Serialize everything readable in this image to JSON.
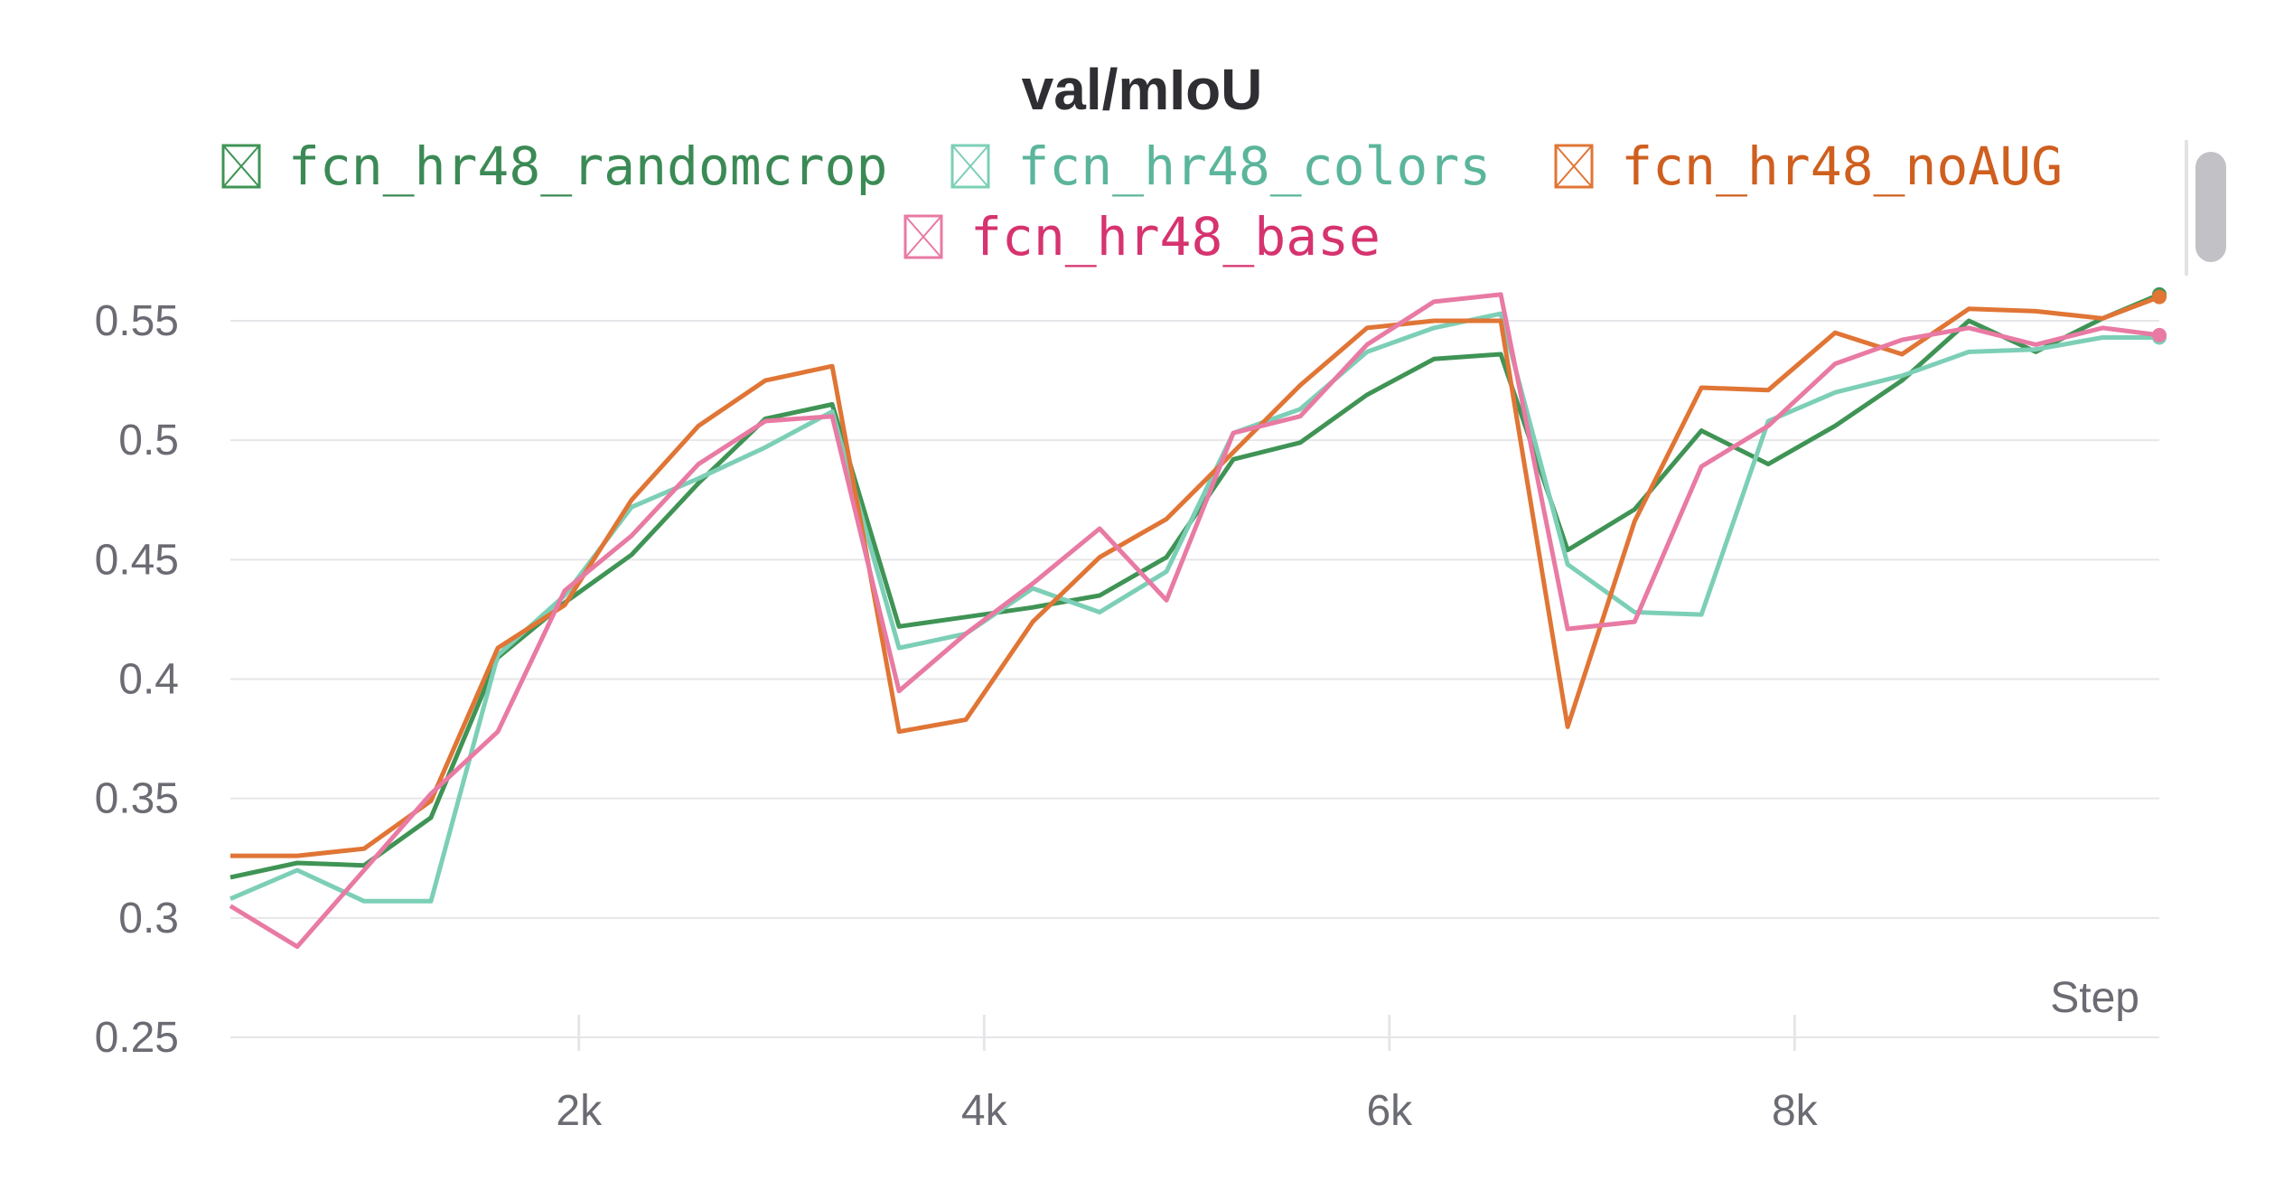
{
  "chart_data": {
    "type": "line",
    "title": "val/mIoU",
    "xlabel": "Step",
    "ylabel": "",
    "xlim": [
      280,
      9800
    ],
    "ylim": [
      0.25,
      0.56
    ],
    "x_ticks": [
      2000,
      4000,
      6000,
      8000
    ],
    "x_tick_labels": [
      "2k",
      "4k",
      "6k",
      "8k"
    ],
    "y_ticks": [
      0.25,
      0.3,
      0.35,
      0.4,
      0.45,
      0.5,
      0.55
    ],
    "y_tick_labels": [
      "0.25",
      "0.3",
      "0.35",
      "0.4",
      "0.45",
      "0.5",
      "0.55"
    ],
    "grid": true,
    "legend_position": "top-center",
    "x": [
      280,
      610,
      940,
      1270,
      1600,
      1930,
      2260,
      2590,
      2920,
      3250,
      3580,
      3910,
      4240,
      4570,
      4900,
      5230,
      5560,
      5890,
      6220,
      6550,
      6880,
      7210,
      7540,
      7870,
      8200,
      8530,
      8860,
      9190,
      9520,
      9800
    ],
    "series": [
      {
        "name": "fcn_hr48_randomcrop",
        "color": "#3f9455",
        "values": [
          0.317,
          0.323,
          0.322,
          0.342,
          0.409,
          0.432,
          0.452,
          0.482,
          0.509,
          0.515,
          0.422,
          0.426,
          0.43,
          0.435,
          0.451,
          0.492,
          0.499,
          0.519,
          0.534,
          0.536,
          0.454,
          0.471,
          0.504,
          0.49,
          0.506,
          0.525,
          0.55,
          0.537,
          0.551,
          0.561
        ]
      },
      {
        "name": "fcn_hr48_colors",
        "color": "#7ccfb6",
        "values": [
          0.308,
          0.32,
          0.307,
          0.307,
          0.41,
          0.435,
          0.472,
          0.484,
          0.497,
          0.512,
          0.413,
          0.419,
          0.438,
          0.428,
          0.445,
          0.503,
          0.513,
          0.537,
          0.547,
          0.553,
          0.448,
          0.428,
          0.427,
          0.508,
          0.52,
          0.527,
          0.537,
          0.538,
          0.543,
          0.543
        ]
      },
      {
        "name": "fcn_hr48_noAUG",
        "color": "#e07535",
        "values": [
          0.326,
          0.326,
          0.329,
          0.349,
          0.413,
          0.431,
          0.475,
          0.506,
          0.525,
          0.531,
          0.378,
          0.383,
          0.424,
          0.451,
          0.467,
          0.495,
          0.523,
          0.547,
          0.55,
          0.55,
          0.38,
          0.466,
          0.522,
          0.521,
          0.545,
          0.536,
          0.555,
          0.554,
          0.551,
          0.56
        ]
      },
      {
        "name": "fcn_hr48_base",
        "color": "#e87aa3",
        "values": [
          0.305,
          0.288,
          0.32,
          0.352,
          0.378,
          0.437,
          0.46,
          0.49,
          0.508,
          0.51,
          0.395,
          0.419,
          0.44,
          0.463,
          0.433,
          0.503,
          0.51,
          0.54,
          0.558,
          0.561,
          0.421,
          0.424,
          0.489,
          0.506,
          0.532,
          0.542,
          0.547,
          0.54,
          0.547,
          0.544
        ]
      }
    ]
  },
  "legend": {
    "items": [
      {
        "label": "fcn_hr48_randomcrop",
        "text_color": "#3b8a55",
        "icon": "checkbox-x-icon"
      },
      {
        "label": "fcn_hr48_colors",
        "text_color": "#5bb59b",
        "icon": "checkbox-x-icon"
      },
      {
        "label": "fcn_hr48_noAUG",
        "text_color": "#cf5f1f",
        "icon": "checkbox-x-icon"
      },
      {
        "label": "fcn_hr48_base",
        "text_color": "#d6336f",
        "icon": "checkbox-x-icon"
      }
    ]
  },
  "colors": {
    "grid": "#e6e6e9",
    "axis_text": "#6b6b73",
    "title": "#2e2e33"
  }
}
